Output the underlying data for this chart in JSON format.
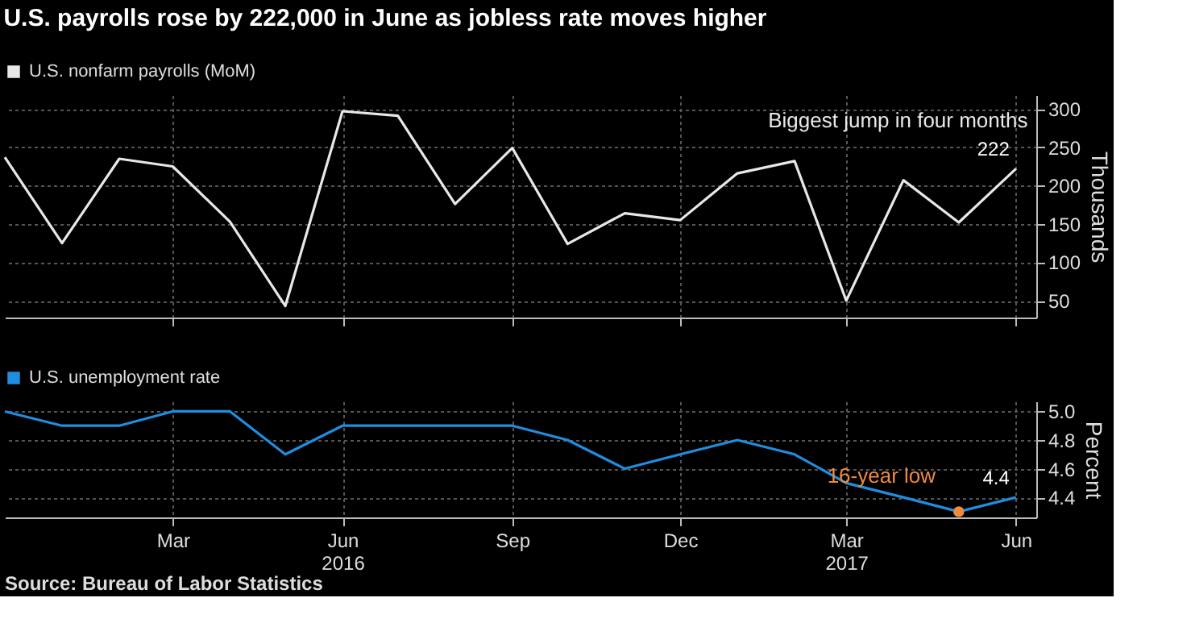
{
  "chart_data": [
    {
      "type": "line",
      "title": "U.S. payrolls rose by 222,000 in June as jobless rate moves higher",
      "x": [
        "2015-12",
        "2016-01",
        "2016-02",
        "2016-03",
        "2016-04",
        "2016-05",
        "2016-06",
        "2016-07",
        "2016-08",
        "2016-09",
        "2016-10",
        "2016-11",
        "2016-12",
        "2017-01",
        "2017-02",
        "2017-03",
        "2017-04",
        "2017-05",
        "2017-06"
      ],
      "series": [
        {
          "name": "U.S. nonfarm payrolls (MoM)",
          "color": "#e8e8e8",
          "values": [
            237,
            125,
            235,
            225,
            153,
            43,
            297,
            291,
            176,
            249,
            124,
            164,
            155,
            216,
            232,
            50,
            207,
            152,
            222
          ],
          "value_labels": [
            null,
            null,
            null,
            null,
            null,
            null,
            null,
            null,
            null,
            null,
            null,
            null,
            null,
            null,
            null,
            null,
            null,
            null,
            "222"
          ]
        }
      ],
      "xlim": [
        "2015-12",
        "2017-06-12"
      ],
      "xticks": [
        {
          "value": "2016-03",
          "label": null
        },
        {
          "value": "2016-06",
          "label": null
        },
        {
          "value": "2016-09",
          "label": null
        },
        {
          "value": "2016-12",
          "label": null
        },
        {
          "value": "2017-03",
          "label": null
        },
        {
          "value": "2017-06",
          "label": null
        }
      ],
      "ylim": [
        28,
        318
      ],
      "yticks": [
        50,
        100,
        150,
        200,
        250,
        300
      ],
      "ylabel": "Thousands",
      "grid": true,
      "legend": "top left",
      "tick_labels": "y",
      "annotations": [
        "Biggest jump in four months"
      ]
    },
    {
      "type": "line",
      "x": [
        "2015-12",
        "2016-01",
        "2016-02",
        "2016-03",
        "2016-04",
        "2016-05",
        "2016-06",
        "2016-07",
        "2016-08",
        "2016-09",
        "2016-10",
        "2016-11",
        "2016-12",
        "2017-01",
        "2017-02",
        "2017-03",
        "2017-04",
        "2017-05",
        "2017-06"
      ],
      "series": [
        {
          "name": "U.S. unemployment rate",
          "color": "#1f8de0",
          "values": [
            5.0,
            4.9,
            4.9,
            5.0,
            5.0,
            4.7,
            4.9,
            4.9,
            4.9,
            4.9,
            4.8,
            4.6,
            4.7,
            4.8,
            4.7,
            4.5,
            4.4,
            4.3,
            4.4
          ],
          "value_labels": [
            null,
            null,
            null,
            null,
            null,
            null,
            null,
            null,
            null,
            null,
            null,
            null,
            null,
            null,
            null,
            null,
            null,
            null,
            "4.4"
          ]
        }
      ],
      "xlim": [
        "2015-12",
        "2017-06-12"
      ],
      "xticks": [
        {
          "value": "2016-03",
          "label": "Mar"
        },
        {
          "value": "2016-06",
          "label": "Jun 2016"
        },
        {
          "value": "2016-09",
          "label": "Sep"
        },
        {
          "value": "2016-12",
          "label": "Dec"
        },
        {
          "value": "2017-03",
          "label": "Mar 2017"
        },
        {
          "value": "2017-06",
          "label": "Jun"
        }
      ],
      "ylim": [
        4.26,
        5.07
      ],
      "yticks": [
        4.4,
        4.6,
        4.8,
        {
          "value": 5.0,
          "label": "5.0"
        }
      ],
      "ylabel": "Percent",
      "grid": true,
      "legend": "top left",
      "annotations": [
        {
          "text": "16-year low",
          "x": "2017-05",
          "y": 4.3
        },
        "Source: Bureau of Labor Statistics"
      ]
    }
  ]
}
